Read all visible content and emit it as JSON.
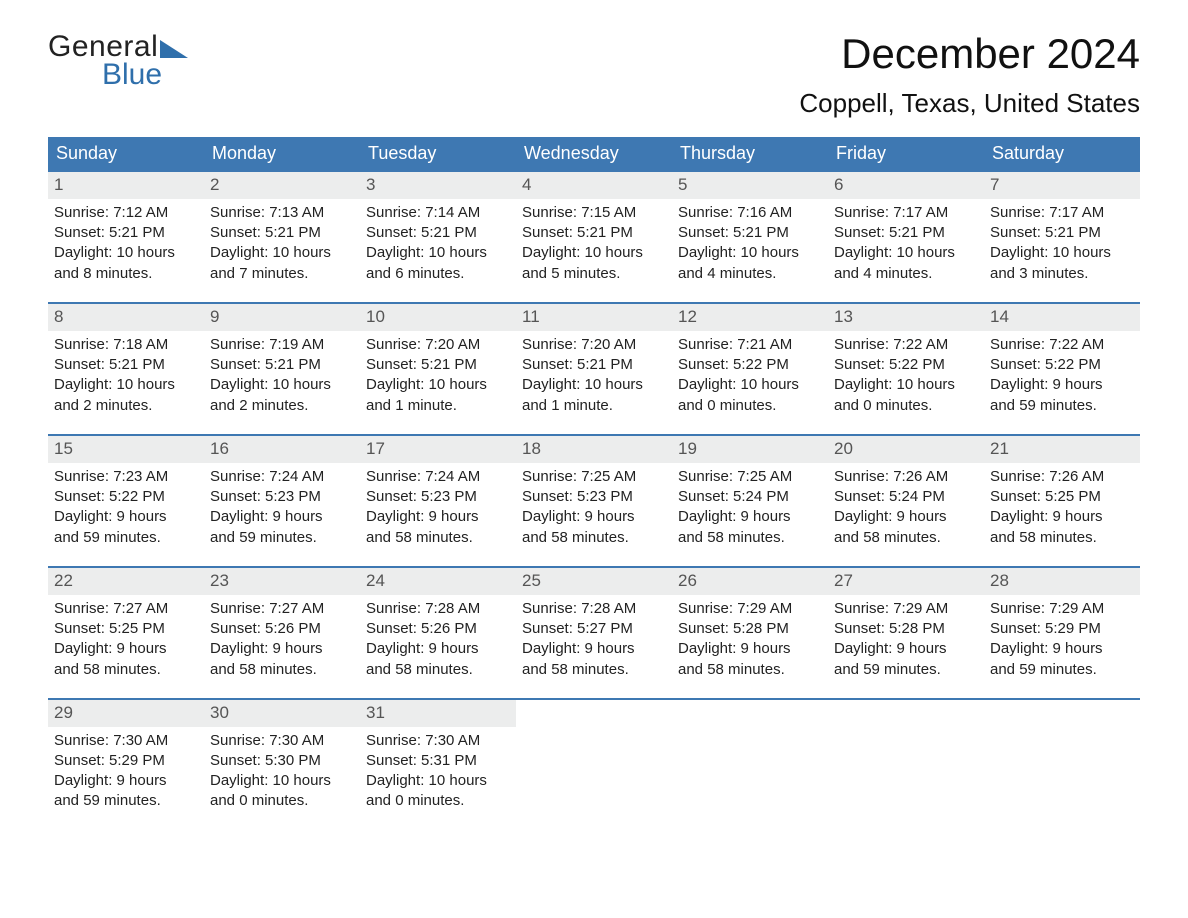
{
  "logo": {
    "word1": "General",
    "word2": "Blue"
  },
  "title": "December 2024",
  "location": "Coppell, Texas, United States",
  "colors": {
    "header_bg": "#3e78b2",
    "header_text": "#ffffff",
    "daynum_bg": "#eceded",
    "rule": "#3e78b2",
    "brand_blue": "#2f6fab"
  },
  "day_headers": [
    "Sunday",
    "Monday",
    "Tuesday",
    "Wednesday",
    "Thursday",
    "Friday",
    "Saturday"
  ],
  "weeks": [
    [
      {
        "n": "1",
        "sunrise": "Sunrise: 7:12 AM",
        "sunset": "Sunset: 5:21 PM",
        "d1": "Daylight: 10 hours",
        "d2": "and 8 minutes."
      },
      {
        "n": "2",
        "sunrise": "Sunrise: 7:13 AM",
        "sunset": "Sunset: 5:21 PM",
        "d1": "Daylight: 10 hours",
        "d2": "and 7 minutes."
      },
      {
        "n": "3",
        "sunrise": "Sunrise: 7:14 AM",
        "sunset": "Sunset: 5:21 PM",
        "d1": "Daylight: 10 hours",
        "d2": "and 6 minutes."
      },
      {
        "n": "4",
        "sunrise": "Sunrise: 7:15 AM",
        "sunset": "Sunset: 5:21 PM",
        "d1": "Daylight: 10 hours",
        "d2": "and 5 minutes."
      },
      {
        "n": "5",
        "sunrise": "Sunrise: 7:16 AM",
        "sunset": "Sunset: 5:21 PM",
        "d1": "Daylight: 10 hours",
        "d2": "and 4 minutes."
      },
      {
        "n": "6",
        "sunrise": "Sunrise: 7:17 AM",
        "sunset": "Sunset: 5:21 PM",
        "d1": "Daylight: 10 hours",
        "d2": "and 4 minutes."
      },
      {
        "n": "7",
        "sunrise": "Sunrise: 7:17 AM",
        "sunset": "Sunset: 5:21 PM",
        "d1": "Daylight: 10 hours",
        "d2": "and 3 minutes."
      }
    ],
    [
      {
        "n": "8",
        "sunrise": "Sunrise: 7:18 AM",
        "sunset": "Sunset: 5:21 PM",
        "d1": "Daylight: 10 hours",
        "d2": "and 2 minutes."
      },
      {
        "n": "9",
        "sunrise": "Sunrise: 7:19 AM",
        "sunset": "Sunset: 5:21 PM",
        "d1": "Daylight: 10 hours",
        "d2": "and 2 minutes."
      },
      {
        "n": "10",
        "sunrise": "Sunrise: 7:20 AM",
        "sunset": "Sunset: 5:21 PM",
        "d1": "Daylight: 10 hours",
        "d2": "and 1 minute."
      },
      {
        "n": "11",
        "sunrise": "Sunrise: 7:20 AM",
        "sunset": "Sunset: 5:21 PM",
        "d1": "Daylight: 10 hours",
        "d2": "and 1 minute."
      },
      {
        "n": "12",
        "sunrise": "Sunrise: 7:21 AM",
        "sunset": "Sunset: 5:22 PM",
        "d1": "Daylight: 10 hours",
        "d2": "and 0 minutes."
      },
      {
        "n": "13",
        "sunrise": "Sunrise: 7:22 AM",
        "sunset": "Sunset: 5:22 PM",
        "d1": "Daylight: 10 hours",
        "d2": "and 0 minutes."
      },
      {
        "n": "14",
        "sunrise": "Sunrise: 7:22 AM",
        "sunset": "Sunset: 5:22 PM",
        "d1": "Daylight: 9 hours",
        "d2": "and 59 minutes."
      }
    ],
    [
      {
        "n": "15",
        "sunrise": "Sunrise: 7:23 AM",
        "sunset": "Sunset: 5:22 PM",
        "d1": "Daylight: 9 hours",
        "d2": "and 59 minutes."
      },
      {
        "n": "16",
        "sunrise": "Sunrise: 7:24 AM",
        "sunset": "Sunset: 5:23 PM",
        "d1": "Daylight: 9 hours",
        "d2": "and 59 minutes."
      },
      {
        "n": "17",
        "sunrise": "Sunrise: 7:24 AM",
        "sunset": "Sunset: 5:23 PM",
        "d1": "Daylight: 9 hours",
        "d2": "and 58 minutes."
      },
      {
        "n": "18",
        "sunrise": "Sunrise: 7:25 AM",
        "sunset": "Sunset: 5:23 PM",
        "d1": "Daylight: 9 hours",
        "d2": "and 58 minutes."
      },
      {
        "n": "19",
        "sunrise": "Sunrise: 7:25 AM",
        "sunset": "Sunset: 5:24 PM",
        "d1": "Daylight: 9 hours",
        "d2": "and 58 minutes."
      },
      {
        "n": "20",
        "sunrise": "Sunrise: 7:26 AM",
        "sunset": "Sunset: 5:24 PM",
        "d1": "Daylight: 9 hours",
        "d2": "and 58 minutes."
      },
      {
        "n": "21",
        "sunrise": "Sunrise: 7:26 AM",
        "sunset": "Sunset: 5:25 PM",
        "d1": "Daylight: 9 hours",
        "d2": "and 58 minutes."
      }
    ],
    [
      {
        "n": "22",
        "sunrise": "Sunrise: 7:27 AM",
        "sunset": "Sunset: 5:25 PM",
        "d1": "Daylight: 9 hours",
        "d2": "and 58 minutes."
      },
      {
        "n": "23",
        "sunrise": "Sunrise: 7:27 AM",
        "sunset": "Sunset: 5:26 PM",
        "d1": "Daylight: 9 hours",
        "d2": "and 58 minutes."
      },
      {
        "n": "24",
        "sunrise": "Sunrise: 7:28 AM",
        "sunset": "Sunset: 5:26 PM",
        "d1": "Daylight: 9 hours",
        "d2": "and 58 minutes."
      },
      {
        "n": "25",
        "sunrise": "Sunrise: 7:28 AM",
        "sunset": "Sunset: 5:27 PM",
        "d1": "Daylight: 9 hours",
        "d2": "and 58 minutes."
      },
      {
        "n": "26",
        "sunrise": "Sunrise: 7:29 AM",
        "sunset": "Sunset: 5:28 PM",
        "d1": "Daylight: 9 hours",
        "d2": "and 58 minutes."
      },
      {
        "n": "27",
        "sunrise": "Sunrise: 7:29 AM",
        "sunset": "Sunset: 5:28 PM",
        "d1": "Daylight: 9 hours",
        "d2": "and 59 minutes."
      },
      {
        "n": "28",
        "sunrise": "Sunrise: 7:29 AM",
        "sunset": "Sunset: 5:29 PM",
        "d1": "Daylight: 9 hours",
        "d2": "and 59 minutes."
      }
    ],
    [
      {
        "n": "29",
        "sunrise": "Sunrise: 7:30 AM",
        "sunset": "Sunset: 5:29 PM",
        "d1": "Daylight: 9 hours",
        "d2": "and 59 minutes."
      },
      {
        "n": "30",
        "sunrise": "Sunrise: 7:30 AM",
        "sunset": "Sunset: 5:30 PM",
        "d1": "Daylight: 10 hours",
        "d2": "and 0 minutes."
      },
      {
        "n": "31",
        "sunrise": "Sunrise: 7:30 AM",
        "sunset": "Sunset: 5:31 PM",
        "d1": "Daylight: 10 hours",
        "d2": "and 0 minutes."
      },
      null,
      null,
      null,
      null
    ]
  ]
}
